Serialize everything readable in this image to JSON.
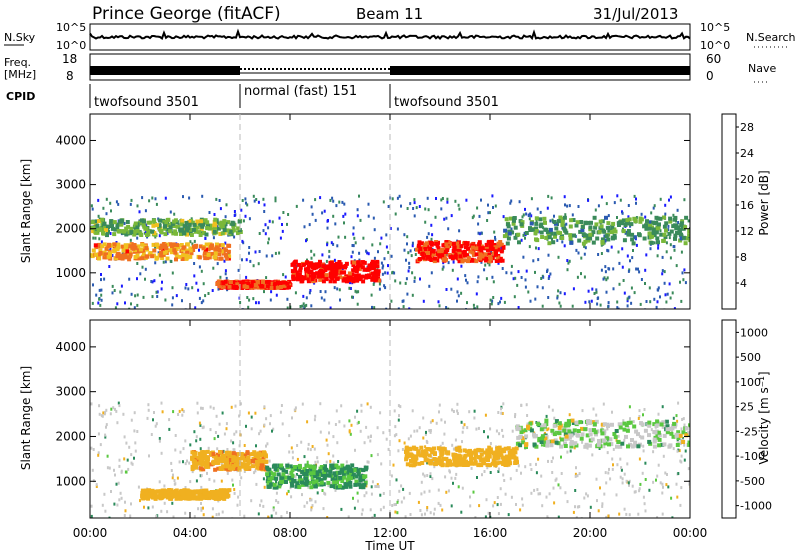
{
  "header": {
    "station": "Prince George (fitACF)",
    "beam": "Beam 11",
    "date": "31/Jul/2013"
  },
  "panels": {
    "nsky": {
      "left_label": "N.Sky",
      "right_label": "N.Search",
      "ticks": [
        "10^5",
        "10^0"
      ],
      "right_ticks": [
        "10^5",
        "10^0"
      ]
    },
    "freq": {
      "left_label_1": "Freq.",
      "left_label_2": "[MHz]",
      "ticks": [
        "18",
        "8"
      ],
      "right_label": "Nave",
      "right_ticks": [
        "60",
        "0"
      ]
    },
    "cpid": {
      "label": "CPID",
      "segments": [
        {
          "name": "twofsound 3501",
          "start_hour": 0,
          "end_hour": 6
        },
        {
          "name": "normal (fast) 151",
          "start_hour": 6,
          "end_hour": 12
        },
        {
          "name": "twofsound 3501",
          "start_hour": 12,
          "end_hour": 24
        }
      ]
    }
  },
  "chart_data": [
    {
      "type": "heatmap",
      "quantity": "Power",
      "ylabel": "Slant Range [km]",
      "ylim": [
        180,
        4600
      ],
      "yticks": [
        1000,
        2000,
        3000,
        4000
      ],
      "xlim": [
        0,
        24
      ],
      "colorbar": {
        "label": "Power [dB]",
        "ticks": [
          4,
          8,
          12,
          16,
          20,
          24,
          28
        ],
        "range": [
          0,
          30
        ],
        "colors": [
          "#1a1aff",
          "#2a5ab0",
          "#3a8a5a",
          "#7ab83a",
          "#f0c020",
          "#f07020",
          "#ff0000"
        ]
      },
      "bands": [
        {
          "start_hour": 0,
          "end_hour": 5.5,
          "range_km": [
            1350,
            1700
          ],
          "value": 22
        },
        {
          "start_hour": 0,
          "end_hour": 6,
          "range_km": [
            1900,
            2250
          ],
          "value": 14
        },
        {
          "start_hour": 5,
          "end_hour": 8,
          "range_km": [
            700,
            850
          ],
          "value": 27
        },
        {
          "start_hour": 8,
          "end_hour": 11.5,
          "range_km": [
            850,
            1300
          ],
          "value": 29
        },
        {
          "start_hour": 13,
          "end_hour": 16.5,
          "range_km": [
            1300,
            1750
          ],
          "value": 27
        },
        {
          "start_hour": 16.5,
          "end_hour": 24,
          "range_km": [
            1700,
            2300
          ],
          "value": 12
        }
      ]
    },
    {
      "type": "heatmap",
      "quantity": "Velocity",
      "ylabel": "Slant Range [km]",
      "xlabel": "Time UT",
      "ylim": [
        180,
        4600
      ],
      "yticks": [
        1000,
        2000,
        3000,
        4000
      ],
      "xlim": [
        0,
        24
      ],
      "xticks": [
        "00:00",
        "04:00",
        "08:00",
        "12:00",
        "16:00",
        "20:00",
        "00:00"
      ],
      "colorbar": {
        "label": "Velocity [m s⁻¹]",
        "ticks": [
          "1000",
          "500",
          "100",
          "25",
          "-25",
          "-100",
          "-500",
          "-1000"
        ],
        "colors": [
          "#1a1ab0",
          "#1f5aa0",
          "#2a8a5a",
          "#5ac840",
          "#c8c8c8",
          "#f0b020",
          "#f07020",
          "#ff1010"
        ]
      },
      "bands": [
        {
          "start_hour": 2,
          "end_hour": 5.5,
          "range_km": [
            650,
            850
          ],
          "value": -150
        },
        {
          "start_hour": 4,
          "end_hour": 7,
          "range_km": [
            1300,
            1700
          ],
          "value": -250
        },
        {
          "start_hour": 7,
          "end_hour": 11,
          "range_km": [
            900,
            1400
          ],
          "value": 80
        },
        {
          "start_hour": 12.5,
          "end_hour": 17,
          "range_km": [
            1400,
            1800
          ],
          "value": -200
        },
        {
          "start_hour": 17,
          "end_hour": 24,
          "range_km": [
            1800,
            2400
          ],
          "value": 0
        }
      ]
    }
  ]
}
